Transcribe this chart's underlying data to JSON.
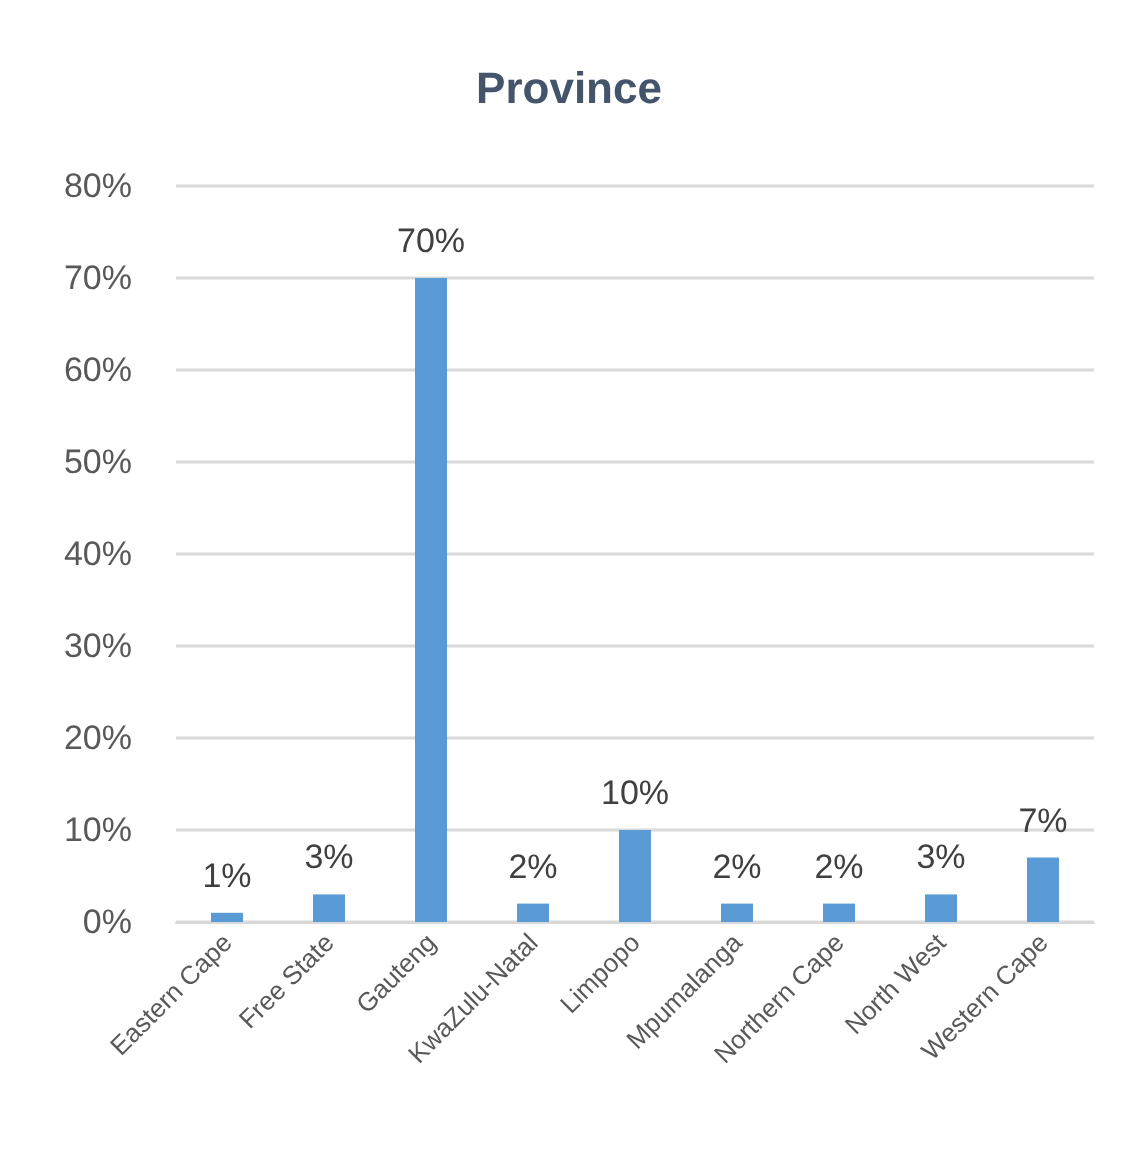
{
  "chart_data": {
    "type": "bar",
    "title": "Province",
    "categories": [
      "Eastern Cape",
      "Free State",
      "Gauteng",
      "KwaZulu-Natal",
      "Limpopo",
      "Mpumalanga",
      "Northern Cape",
      "North West",
      "Western Cape"
    ],
    "values": [
      1,
      3,
      70,
      2,
      10,
      2,
      2,
      3,
      7
    ],
    "value_labels": [
      "1%",
      "3%",
      "70%",
      "2%",
      "10%",
      "2%",
      "2%",
      "3%",
      "7%"
    ],
    "color": "#5b9bd5",
    "ylim": [
      0,
      80
    ],
    "yticks": [
      {
        "value": 0,
        "label": "0%"
      },
      {
        "value": 10,
        "label": "10%"
      },
      {
        "value": 20,
        "label": "20%"
      },
      {
        "value": 30,
        "label": "30%"
      },
      {
        "value": 40,
        "label": "40%"
      },
      {
        "value": 50,
        "label": "50%"
      },
      {
        "value": 60,
        "label": "60%"
      },
      {
        "value": 70,
        "label": "70%"
      },
      {
        "value": 80,
        "label": "80%"
      }
    ],
    "grid": "y"
  }
}
